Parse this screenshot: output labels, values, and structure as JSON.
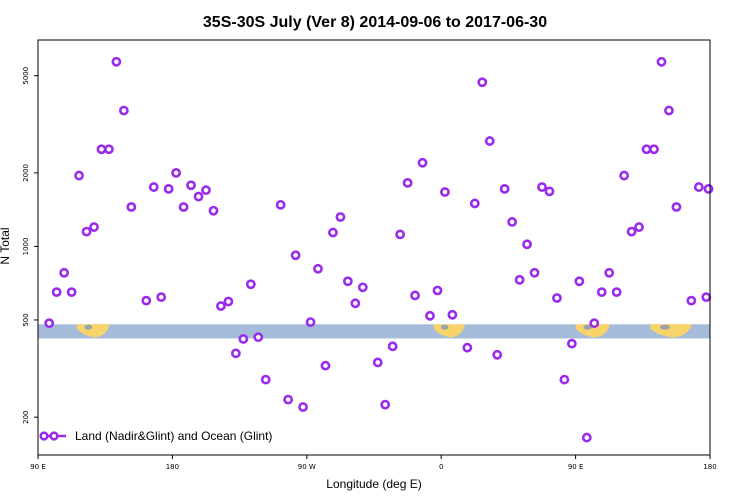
{
  "chart_data": {
    "type": "scatter",
    "title": "35S-30S July (Ver 8)   2014-09-06 to 2017-06-30",
    "xlabel": "Longitude (deg E)",
    "ylabel": "N Total",
    "y_scale": "log",
    "xlim": [
      90,
      540
    ],
    "ylim": [
      140,
      7000
    ],
    "x_ticks": [
      {
        "value": 90,
        "label": "90 E"
      },
      {
        "value": 180,
        "label": "180"
      },
      {
        "value": 270,
        "label": "90 W"
      },
      {
        "value": 360,
        "label": "0"
      },
      {
        "value": 450,
        "label": "90 E"
      },
      {
        "value": 540,
        "label": "180"
      }
    ],
    "y_ticks": [
      {
        "value": 200,
        "label": "200"
      },
      {
        "value": 500,
        "label": "500"
      },
      {
        "value": 1000,
        "label": "1000"
      },
      {
        "value": 2000,
        "label": "2000"
      },
      {
        "value": 5000,
        "label": "5000"
      }
    ],
    "grid": false,
    "legend": {
      "position": "bottom-left",
      "entries": [
        "Land (Nadir&Glint) and Ocean (Glint)"
      ]
    },
    "colors": {
      "points": "#9b2bea",
      "ocean_band": "#a4bbd9",
      "land_band": "#f7d36a",
      "land_gray": "#9aa4a8"
    },
    "band_y": [
      420,
      480
    ],
    "land_segments": [
      [
        116,
        138
      ],
      [
        355,
        376
      ],
      [
        508,
        520
      ]
    ],
    "land_segments_wrapped": [
      [
        450,
        473
      ],
      [
        500,
        528
      ]
    ],
    "points": [
      {
        "x": 97.5,
        "y": 485
      },
      {
        "x": 102.5,
        "y": 650
      },
      {
        "x": 107.5,
        "y": 780
      },
      {
        "x": 112.5,
        "y": 650
      },
      {
        "x": 117.5,
        "y": 1950
      },
      {
        "x": 122.5,
        "y": 1150
      },
      {
        "x": 127.5,
        "y": 1200
      },
      {
        "x": 132.5,
        "y": 2500
      },
      {
        "x": 137.5,
        "y": 2500
      },
      {
        "x": 142.5,
        "y": 5700
      },
      {
        "x": 147.5,
        "y": 3600
      },
      {
        "x": 152.5,
        "y": 1450
      },
      {
        "x": 162.5,
        "y": 600
      },
      {
        "x": 167.5,
        "y": 1750
      },
      {
        "x": 172.5,
        "y": 620
      },
      {
        "x": 177.5,
        "y": 1720
      },
      {
        "x": 182.5,
        "y": 2000
      },
      {
        "x": 187.5,
        "y": 1450
      },
      {
        "x": 192.5,
        "y": 1780
      },
      {
        "x": 197.5,
        "y": 1600
      },
      {
        "x": 202.5,
        "y": 1700
      },
      {
        "x": 207.5,
        "y": 1400
      },
      {
        "x": 212.5,
        "y": 570
      },
      {
        "x": 217.5,
        "y": 595
      },
      {
        "x": 222.5,
        "y": 365
      },
      {
        "x": 227.5,
        "y": 418
      },
      {
        "x": 232.5,
        "y": 700
      },
      {
        "x": 237.5,
        "y": 425
      },
      {
        "x": 242.5,
        "y": 285
      },
      {
        "x": 252.5,
        "y": 1480
      },
      {
        "x": 257.5,
        "y": 236
      },
      {
        "x": 262.5,
        "y": 920
      },
      {
        "x": 267.5,
        "y": 220
      },
      {
        "x": 272.5,
        "y": 490
      },
      {
        "x": 277.5,
        "y": 810
      },
      {
        "x": 282.5,
        "y": 325
      },
      {
        "x": 287.5,
        "y": 1140
      },
      {
        "x": 292.5,
        "y": 1320
      },
      {
        "x": 297.5,
        "y": 720
      },
      {
        "x": 302.5,
        "y": 585
      },
      {
        "x": 307.5,
        "y": 680
      },
      {
        "x": 317.5,
        "y": 335
      },
      {
        "x": 322.5,
        "y": 225
      },
      {
        "x": 327.5,
        "y": 390
      },
      {
        "x": 332.5,
        "y": 1120
      },
      {
        "x": 337.5,
        "y": 1820
      },
      {
        "x": 342.5,
        "y": 630
      },
      {
        "x": 347.5,
        "y": 2200
      },
      {
        "x": 352.5,
        "y": 520
      },
      {
        "x": 357.5,
        "y": 660
      },
      {
        "x": 362.5,
        "y": 1670
      },
      {
        "x": 367.5,
        "y": 525
      },
      {
        "x": 377.5,
        "y": 385
      },
      {
        "x": 382.5,
        "y": 1500
      },
      {
        "x": 387.5,
        "y": 4700
      },
      {
        "x": 392.5,
        "y": 2700
      },
      {
        "x": 397.5,
        "y": 360
      },
      {
        "x": 402.5,
        "y": 1720
      },
      {
        "x": 407.5,
        "y": 1260
      },
      {
        "x": 412.5,
        "y": 730
      },
      {
        "x": 417.5,
        "y": 1020
      },
      {
        "x": 422.5,
        "y": 780
      },
      {
        "x": 427.5,
        "y": 1750
      },
      {
        "x": 432.5,
        "y": 1680
      },
      {
        "x": 437.5,
        "y": 615
      },
      {
        "x": 442.5,
        "y": 285
      },
      {
        "x": 447.5,
        "y": 400
      },
      {
        "x": 452.5,
        "y": 720
      },
      {
        "x": 457.5,
        "y": 165
      },
      {
        "x": 462.5,
        "y": 485
      },
      {
        "x": 467.5,
        "y": 650
      },
      {
        "x": 472.5,
        "y": 780
      },
      {
        "x": 477.5,
        "y": 650
      },
      {
        "x": 482.5,
        "y": 1950
      },
      {
        "x": 487.5,
        "y": 1150
      },
      {
        "x": 492.5,
        "y": 1200
      },
      {
        "x": 497.5,
        "y": 2500
      },
      {
        "x": 502.5,
        "y": 2500
      },
      {
        "x": 507.5,
        "y": 5700
      },
      {
        "x": 512.5,
        "y": 3600
      },
      {
        "x": 517.5,
        "y": 1450
      },
      {
        "x": 527.5,
        "y": 600
      },
      {
        "x": 532.5,
        "y": 1750
      },
      {
        "x": 537.5,
        "y": 620
      },
      {
        "x": 539,
        "y": 1720
      }
    ]
  }
}
